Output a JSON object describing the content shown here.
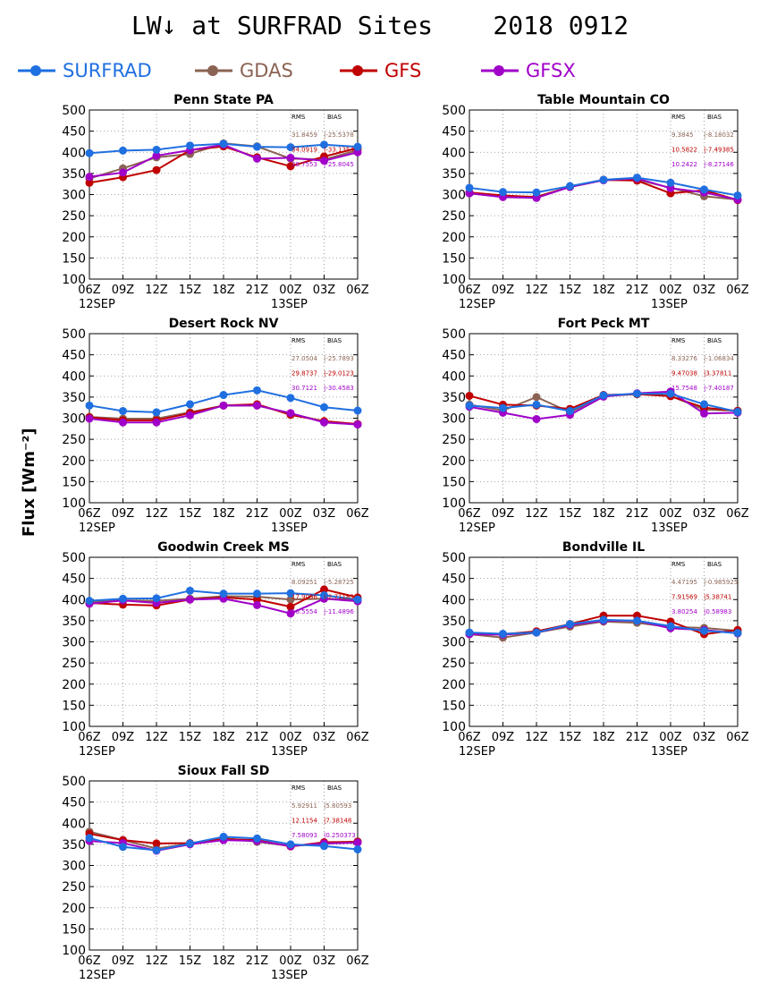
{
  "figure": {
    "title": "LW↓ at SURFRAD Sites    2018 0912",
    "ylabel": "Flux [Wm⁻²]"
  },
  "colors": {
    "SURFRAD": "#1f6fe0",
    "GDAS": "#8b6354",
    "GFS": "#c00000",
    "GFSX": "#a000c8"
  },
  "legend": [
    {
      "name": "SURFRAD",
      "color": "#1f6fe0"
    },
    {
      "name": "GDAS",
      "color": "#8b6354"
    },
    {
      "name": "GFS",
      "color": "#c00000"
    },
    {
      "name": "GFSX",
      "color": "#a000c8"
    }
  ],
  "chart_data": [
    {
      "type": "line",
      "title": "Penn State PA",
      "categories": [
        "06Z",
        "09Z",
        "12Z",
        "15Z",
        "18Z",
        "21Z",
        "00Z",
        "03Z",
        "06Z"
      ],
      "date_labels": [
        "12SEP",
        "13SEP"
      ],
      "ylim": [
        100,
        500
      ],
      "yticks": [
        100,
        150,
        200,
        250,
        300,
        350,
        400,
        450,
        500
      ],
      "grid": true,
      "stats_headers": [
        "RMS",
        "BIAS"
      ],
      "series": [
        {
          "name": "SURFRAD",
          "values": [
            398,
            404,
            406,
            416,
            420,
            413,
            412,
            418,
            413
          ]
        },
        {
          "name": "GDAS",
          "values": [
            338,
            362,
            388,
            396,
            421,
            414,
            385,
            383,
            405
          ],
          "rms": "31.8459",
          "bias": "-25.5378"
        },
        {
          "name": "GFS",
          "values": [
            328,
            341,
            358,
            405,
            414,
            388,
            367,
            390,
            410
          ],
          "rms": "34.0919",
          "bias": "-33.1354"
        },
        {
          "name": "GFSX",
          "values": [
            342,
            352,
            392,
            405,
            418,
            385,
            387,
            380,
            400
          ],
          "rms": "28.7553",
          "bias": "-25.8045"
        }
      ]
    },
    {
      "type": "line",
      "title": "Table Mountain CO",
      "categories": [
        "06Z",
        "09Z",
        "12Z",
        "15Z",
        "18Z",
        "21Z",
        "00Z",
        "03Z",
        "06Z"
      ],
      "date_labels": [
        "12SEP",
        "13SEP"
      ],
      "ylim": [
        100,
        500
      ],
      "yticks": [
        100,
        150,
        200,
        250,
        300,
        350,
        400,
        450,
        500
      ],
      "grid": true,
      "stats_headers": [
        "RMS",
        "BIAS"
      ],
      "series": [
        {
          "name": "SURFRAD",
          "values": [
            316,
            306,
            305,
            320,
            335,
            340,
            328,
            312,
            298
          ]
        },
        {
          "name": "GDAS",
          "values": [
            303,
            295,
            295,
            318,
            334,
            335,
            316,
            296,
            288
          ],
          "rms": "9.3845",
          "bias": "-8.18032"
        },
        {
          "name": "GFS",
          "values": [
            305,
            298,
            294,
            318,
            335,
            333,
            303,
            310,
            287
          ],
          "rms": "10.5822",
          "bias": "-7.49385"
        },
        {
          "name": "GFSX",
          "values": [
            303,
            294,
            292,
            318,
            334,
            338,
            315,
            305,
            288
          ],
          "rms": "10.2422",
          "bias": "-8.27146"
        }
      ]
    },
    {
      "type": "line",
      "title": "Desert Rock NV",
      "categories": [
        "06Z",
        "09Z",
        "12Z",
        "15Z",
        "18Z",
        "21Z",
        "00Z",
        "03Z",
        "06Z"
      ],
      "date_labels": [
        "12SEP",
        "13SEP"
      ],
      "ylim": [
        100,
        500
      ],
      "yticks": [
        100,
        150,
        200,
        250,
        300,
        350,
        400,
        450,
        500
      ],
      "grid": true,
      "stats_headers": [
        "RMS",
        "BIAS"
      ],
      "series": [
        {
          "name": "SURFRAD",
          "values": [
            330,
            317,
            314,
            333,
            355,
            366,
            348,
            326,
            318
          ]
        },
        {
          "name": "GDAS",
          "values": [
            303,
            299,
            299,
            314,
            330,
            330,
            311,
            292,
            286
          ],
          "rms": "27.0504",
          "bias": "-25.7893"
        },
        {
          "name": "GFS",
          "values": [
            302,
            295,
            295,
            312,
            330,
            333,
            308,
            293,
            286
          ],
          "rms": "29.8737",
          "bias": "-29.0123"
        },
        {
          "name": "GFSX",
          "values": [
            299,
            290,
            290,
            307,
            330,
            330,
            312,
            290,
            285
          ],
          "rms": "30.7121",
          "bias": "-30.4583"
        }
      ]
    },
    {
      "type": "line",
      "title": "Fort Peck MT",
      "categories": [
        "06Z",
        "09Z",
        "12Z",
        "15Z",
        "18Z",
        "21Z",
        "00Z",
        "03Z",
        "06Z"
      ],
      "date_labels": [
        "12SEP",
        "13SEP"
      ],
      "ylim": [
        100,
        500
      ],
      "yticks": [
        100,
        150,
        200,
        250,
        300,
        350,
        400,
        450,
        500
      ],
      "grid": true,
      "stats_headers": [
        "RMS",
        "BIAS"
      ],
      "series": [
        {
          "name": "SURFRAD",
          "values": [
            330,
            324,
            332,
            317,
            354,
            358,
            358,
            333,
            315
          ]
        },
        {
          "name": "GDAS",
          "values": [
            332,
            318,
            350,
            314,
            352,
            357,
            353,
            320,
            318
          ],
          "rms": "8.33276",
          "bias": "-1.06834"
        },
        {
          "name": "GFS",
          "values": [
            353,
            332,
            330,
            322,
            355,
            357,
            352,
            325,
            317
          ],
          "rms": "9.47038",
          "bias": "3.37811"
        },
        {
          "name": "GFSX",
          "values": [
            327,
            313,
            298,
            308,
            351,
            359,
            363,
            311,
            313
          ],
          "rms": "15.7548",
          "bias": "-7.40187"
        }
      ]
    },
    {
      "type": "line",
      "title": "Goodwin Creek MS",
      "categories": [
        "06Z",
        "09Z",
        "12Z",
        "15Z",
        "18Z",
        "21Z",
        "00Z",
        "03Z",
        "06Z"
      ],
      "date_labels": [
        "12SEP",
        "13SEP"
      ],
      "ylim": [
        100,
        500
      ],
      "yticks": [
        100,
        150,
        200,
        250,
        300,
        350,
        400,
        450,
        500
      ],
      "grid": true,
      "stats_headers": [
        "RMS",
        "BIAS"
      ],
      "series": [
        {
          "name": "SURFRAD",
          "values": [
            397,
            402,
            403,
            421,
            414,
            414,
            415,
            410,
            400
          ]
        },
        {
          "name": "GDAS",
          "values": [
            395,
            398,
            397,
            402,
            408,
            407,
            400,
            402,
            399
          ],
          "rms": "8.09251",
          "bias": "-5.28725"
        },
        {
          "name": "GFS",
          "values": [
            392,
            388,
            386,
            400,
            405,
            400,
            383,
            424,
            405
          ],
          "rms": "17.9056",
          "bias": "-2.71183"
        },
        {
          "name": "GFSX",
          "values": [
            390,
            398,
            392,
            400,
            402,
            387,
            367,
            402,
            396
          ],
          "rms": "16.5554",
          "bias": "-11.4896"
        }
      ]
    },
    {
      "type": "line",
      "title": "Bondville IL",
      "categories": [
        "06Z",
        "09Z",
        "12Z",
        "15Z",
        "18Z",
        "21Z",
        "00Z",
        "03Z",
        "06Z"
      ],
      "date_labels": [
        "12SEP",
        "13SEP"
      ],
      "ylim": [
        100,
        500
      ],
      "yticks": [
        100,
        150,
        200,
        250,
        300,
        350,
        400,
        450,
        500
      ],
      "grid": true,
      "stats_headers": [
        "RMS",
        "BIAS"
      ],
      "series": [
        {
          "name": "SURFRAD",
          "values": [
            322,
            319,
            322,
            342,
            352,
            350,
            337,
            326,
            321
          ]
        },
        {
          "name": "GDAS",
          "values": [
            318,
            310,
            322,
            336,
            348,
            345,
            335,
            333,
            326
          ],
          "rms": "4.47195",
          "bias": "-0.985925"
        },
        {
          "name": "GFS",
          "values": [
            320,
            318,
            325,
            342,
            362,
            362,
            348,
            318,
            328
          ],
          "rms": "7.91569",
          "bias": "5.38741"
        },
        {
          "name": "GFSX",
          "values": [
            318,
            317,
            322,
            340,
            350,
            350,
            332,
            328,
            320
          ],
          "rms": "3.80254",
          "bias": "0.58983"
        }
      ]
    },
    {
      "type": "line",
      "title": "Sioux Fall SD",
      "categories": [
        "06Z",
        "09Z",
        "12Z",
        "15Z",
        "18Z",
        "21Z",
        "00Z",
        "03Z",
        "06Z"
      ],
      "date_labels": [
        "12SEP",
        "13SEP"
      ],
      "ylim": [
        100,
        500
      ],
      "yticks": [
        100,
        150,
        200,
        250,
        300,
        350,
        400,
        450,
        500
      ],
      "grid": true,
      "stats_headers": [
        "RMS",
        "BIAS"
      ],
      "series": [
        {
          "name": "SURFRAD",
          "values": [
            365,
            344,
            336,
            352,
            368,
            364,
            350,
            346,
            338
          ]
        },
        {
          "name": "GDAS",
          "values": [
            380,
            360,
            340,
            352,
            365,
            356,
            346,
            351,
            357
          ],
          "rms": "5.92911",
          "bias": "5.80593"
        },
        {
          "name": "GFS",
          "values": [
            375,
            360,
            352,
            353,
            362,
            360,
            345,
            355,
            356
          ],
          "rms": "12.1154",
          "bias": "7.38148"
        },
        {
          "name": "GFSX",
          "values": [
            358,
            353,
            335,
            350,
            360,
            358,
            346,
            352,
            354
          ],
          "rms": "7.58093",
          "bias": "0.250373"
        }
      ]
    }
  ]
}
